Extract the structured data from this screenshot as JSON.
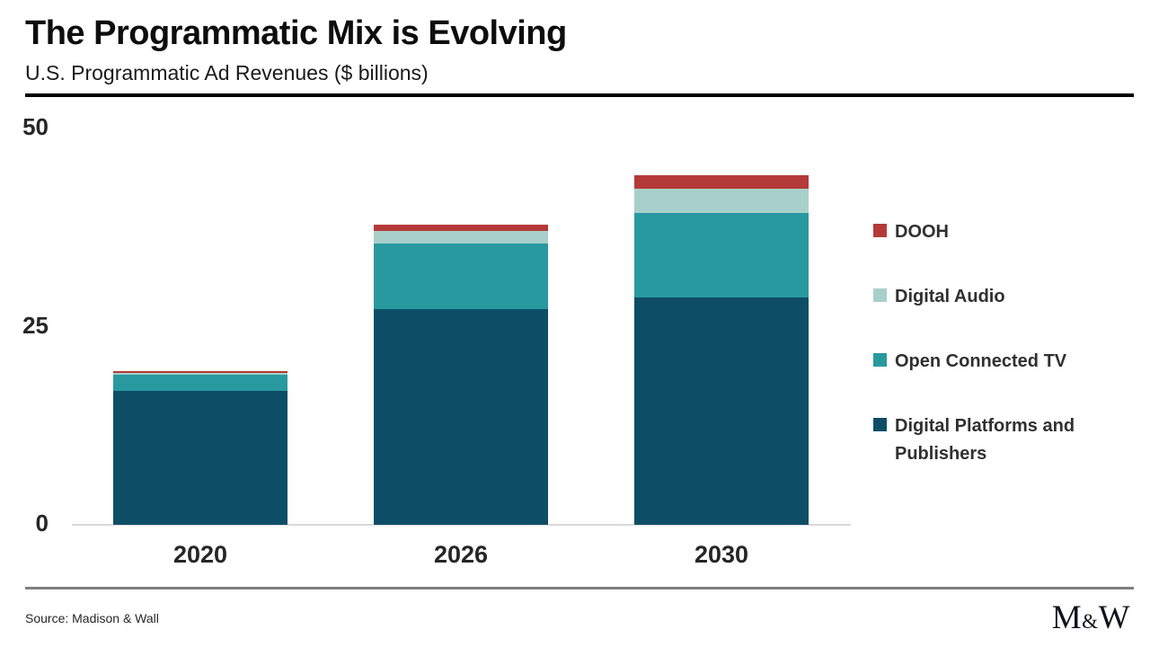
{
  "header": {
    "title": "The Programmatic Mix is Evolving",
    "subtitle": "U.S. Programmatic Ad Revenues ($ billions)"
  },
  "chart_data": {
    "type": "bar",
    "stacked": true,
    "title": "The Programmatic Mix is Evolving",
    "subtitle": "U.S. Programmatic Ad Revenues ($ billions)",
    "categories": [
      "2020",
      "2026",
      "2030"
    ],
    "series": [
      {
        "name": "Digital Platforms and Publishers",
        "color": "#0d4e66",
        "values": [
          16.9,
          27.2,
          28.7
        ]
      },
      {
        "name": "Open Connected TV",
        "color": "#2999a0",
        "values": [
          2.0,
          8.3,
          10.6
        ]
      },
      {
        "name": "Digital Audio",
        "color": "#a8d0cb",
        "values": [
          0.25,
          1.6,
          3.1
        ]
      },
      {
        "name": "DOOH",
        "color": "#b33a38",
        "values": [
          0.25,
          0.8,
          1.7
        ]
      }
    ],
    "totals": [
      19.4,
      37.9,
      44.1
    ],
    "ylim": [
      0,
      50
    ],
    "yticks": [
      0,
      25,
      50
    ],
    "grid": false,
    "legend_position": "right"
  },
  "legend": {
    "items": [
      {
        "label": "DOOH",
        "color": "#b33a38"
      },
      {
        "label": "Digital Audio",
        "color": "#a8d0cb"
      },
      {
        "label": "Open Connected TV",
        "color": "#2999a0"
      },
      {
        "label": "Digital Platforms and Publishers",
        "color": "#0d4e66"
      }
    ]
  },
  "footer": {
    "source": "Source: Madison & Wall",
    "logo_m": "M",
    "logo_amp": "&",
    "logo_w": "W"
  }
}
